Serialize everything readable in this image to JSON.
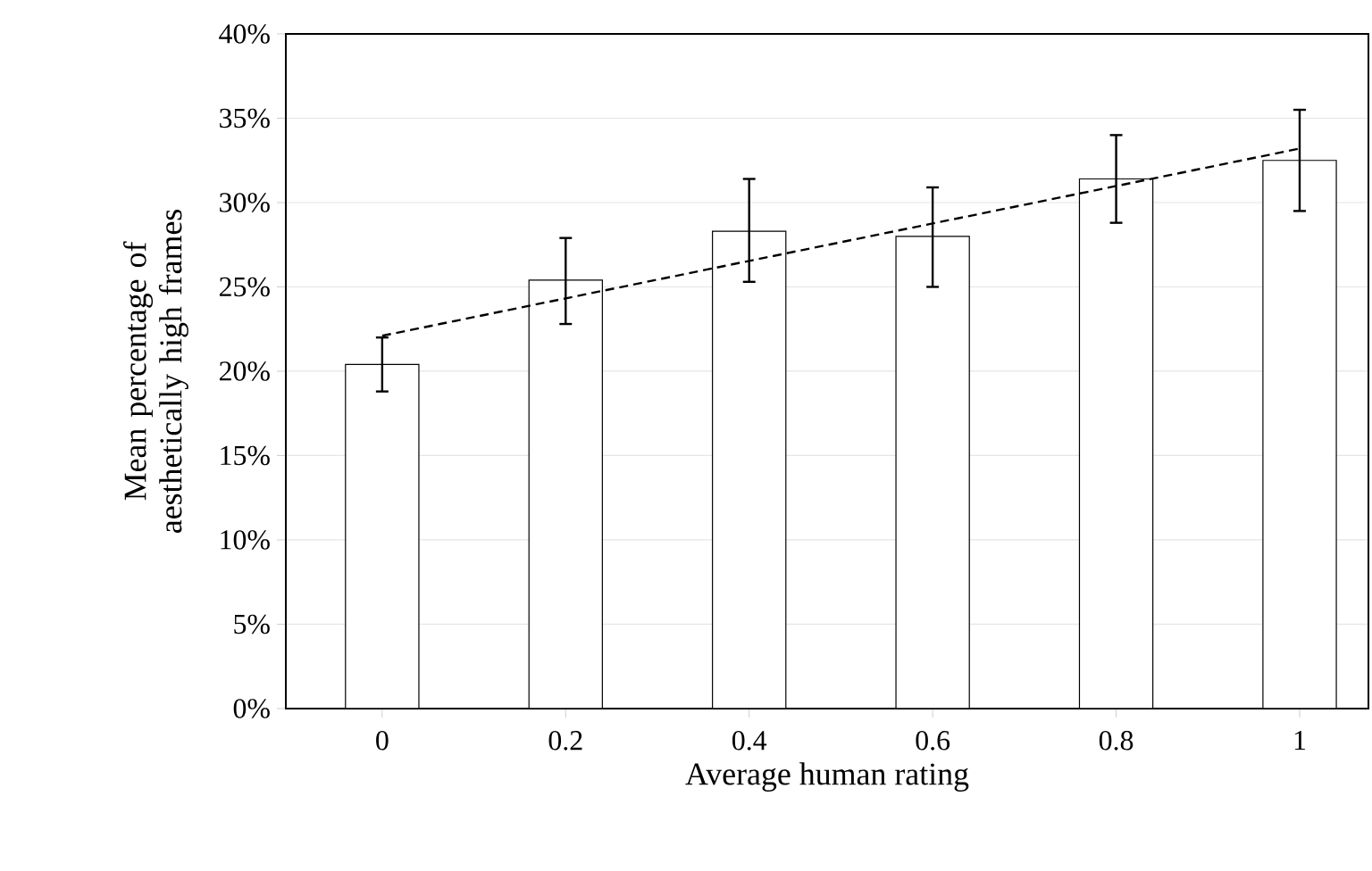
{
  "chart_data": {
    "type": "bar",
    "xlabel": "Average human rating",
    "ylabel": "Mean percentage of aesthetically high frames",
    "x": [
      0,
      0.2,
      0.4,
      0.6,
      0.8,
      1
    ],
    "xlim": [
      -0.105,
      1.075
    ],
    "xticks": [
      0,
      0.2,
      0.4,
      0.6,
      0.8,
      1
    ],
    "ylim": [
      0,
      40
    ],
    "yticks": [
      {
        "value": 0,
        "label": "0%"
      },
      {
        "value": 5,
        "label": "5%"
      },
      {
        "value": 10,
        "label": "10%"
      },
      {
        "value": 15,
        "label": "15%"
      },
      {
        "value": 20,
        "label": "20%"
      },
      {
        "value": 25,
        "label": "25%"
      },
      {
        "value": 30,
        "label": "30%"
      },
      {
        "value": 35,
        "label": "35%"
      },
      {
        "value": 40,
        "label": "40%"
      }
    ],
    "grid": "y",
    "series": [
      {
        "color": "#ffffff",
        "values": [
          20.4,
          25.4,
          28.3,
          28.0,
          31.4,
          32.5
        ],
        "errors": [
          [
            18.8,
            22.0
          ],
          [
            22.8,
            27.9
          ],
          [
            25.3,
            31.4
          ],
          [
            25.0,
            30.9
          ],
          [
            28.8,
            34.0
          ],
          [
            29.5,
            35.5
          ]
        ]
      },
      {
        "type": "line",
        "x": [
          0,
          1
        ],
        "values": [
          22.1,
          33.2
        ],
        "color": "#000000",
        "line_style": "dashed",
        "marker": "none"
      }
    ]
  }
}
